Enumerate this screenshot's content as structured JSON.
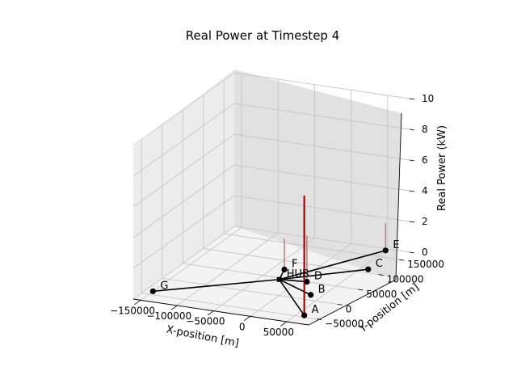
{
  "chart_data": {
    "type": "3d-network-stem",
    "title": "Real Power at Timestep 4",
    "xlabel": "X-position [m]",
    "ylabel": "Y-position [m]",
    "zlabel": "Real Power (kW)",
    "x_ticks": [
      "−150000",
      "−100000",
      "−50000",
      "0",
      "50000"
    ],
    "y_ticks": [
      "−50000",
      "0",
      "50000",
      "100000",
      "150000"
    ],
    "z_ticks": [
      "0",
      "2",
      "4",
      "6",
      "8",
      "10"
    ],
    "xlim": [
      -160000,
      80000
    ],
    "ylim": [
      -70000,
      175000
    ],
    "zlim": [
      0,
      10
    ],
    "grid": true,
    "hub": {
      "name": "HUB",
      "x": -25000,
      "y": 45000
    },
    "nodes": [
      {
        "name": "A",
        "x": 60000,
        "y": -45000,
        "power": 7.8
      },
      {
        "name": "B",
        "x": 35000,
        "y": 15000,
        "power": 0
      },
      {
        "name": "C",
        "x": 60000,
        "y": 110000,
        "power": 0
      },
      {
        "name": "D",
        "x": 10000,
        "y": 50000,
        "power": 3.0
      },
      {
        "name": "E",
        "x": 50000,
        "y": 170000,
        "power": 1.8
      },
      {
        "name": "F",
        "x": -35000,
        "y": 75000,
        "power": 2.0
      },
      {
        "name": "G",
        "x": -150000,
        "y": -40000,
        "power": 0
      }
    ]
  }
}
